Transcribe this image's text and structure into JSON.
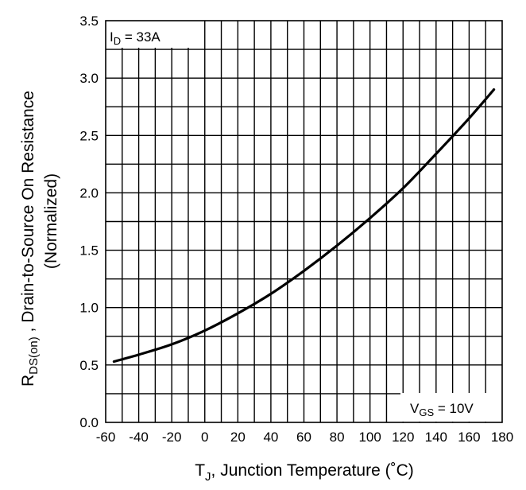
{
  "chart_data": {
    "type": "line",
    "title": "",
    "xlabel_main": "T",
    "xlabel_sub": "J",
    "xlabel_rest": ", Junction Temperature  (",
    "xlabel_unit": "˚C)",
    "ylabel_line1_main": "R",
    "ylabel_line1_sub": "DS(on)",
    "ylabel_line1_rest": " , Drain-to-Source On Resistance",
    "ylabel_line2": "(Normalized)",
    "xlim": [
      -60,
      180
    ],
    "ylim": [
      0.0,
      3.5
    ],
    "grid": true,
    "xticks": [
      "-60",
      "-40",
      "-20",
      "0",
      "20",
      "40",
      "60",
      "80",
      "100",
      "120",
      "140",
      "160",
      "180"
    ],
    "yticks": [
      "0.0",
      "0.5",
      "1.0",
      "1.5",
      "2.0",
      "2.5",
      "3.0",
      "3.5"
    ],
    "annotations": {
      "id_main": "I",
      "id_sub": "D",
      "id_rest": " = 33A",
      "vgs_main": "V",
      "vgs_sub": "GS",
      "vgs_rest": " = 10V"
    },
    "series": [
      {
        "x": [
          -55,
          -40,
          -20,
          0,
          20,
          40,
          60,
          80,
          100,
          120,
          140,
          160,
          175
        ],
        "y": [
          0.53,
          0.59,
          0.68,
          0.8,
          0.95,
          1.12,
          1.32,
          1.54,
          1.78,
          2.04,
          2.34,
          2.65,
          2.9
        ]
      }
    ]
  }
}
